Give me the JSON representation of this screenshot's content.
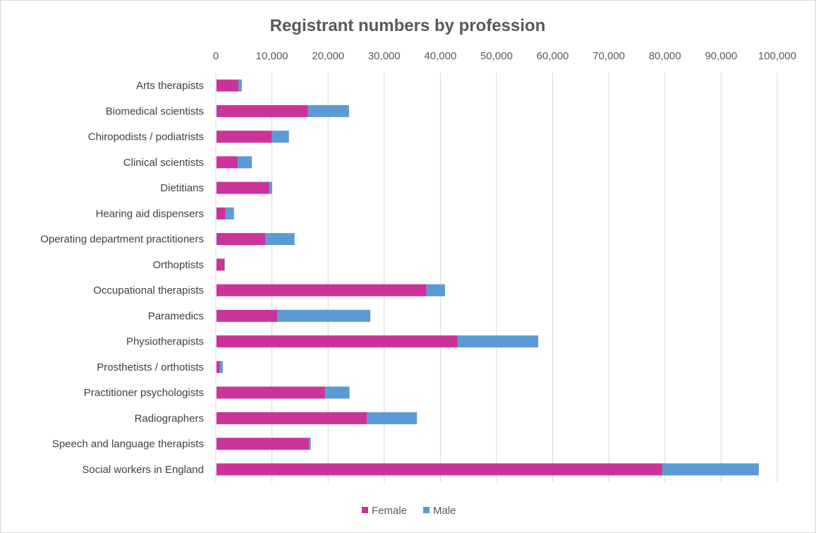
{
  "chart_data": {
    "type": "bar",
    "orientation": "horizontal",
    "stacked": true,
    "title": "Registrant numbers by profession",
    "xlabel": "",
    "ylabel": "",
    "xlim": [
      0,
      100000
    ],
    "ticks": [
      0,
      10000,
      20000,
      30000,
      40000,
      50000,
      60000,
      70000,
      80000,
      90000,
      100000
    ],
    "tick_labels": [
      "0",
      "10,000",
      "20,000",
      "30,000",
      "40,000",
      "50,000",
      "60,000",
      "70,000",
      "80,000",
      "90,000",
      "100,000"
    ],
    "grid": true,
    "legend_position": "bottom",
    "categories": [
      "Arts therapists",
      "Biomedical scientists",
      "Chiropodists / podiatrists",
      "Clinical scientists",
      "Dietitians",
      "Hearing aid dispensers",
      "Operating department practitioners",
      "Orthoptists",
      "Occupational therapists",
      "Paramedics",
      "Physiotherapists",
      "Prosthetists / orthotists",
      "Practitioner psychologists",
      "Radiographers",
      "Speech and language therapists",
      "Social workers in England"
    ],
    "series": [
      {
        "name": "Female",
        "color": "#cc3399",
        "values": [
          3900,
          16300,
          9800,
          3800,
          9400,
          1600,
          8700,
          1400,
          37400,
          10800,
          43000,
          600,
          19300,
          26800,
          16500,
          79400
        ]
      },
      {
        "name": "Male",
        "color": "#5b9bd5",
        "values": [
          600,
          7300,
          3100,
          2500,
          500,
          1500,
          5200,
          100,
          3300,
          16600,
          14300,
          500,
          4400,
          8900,
          300,
          17200
        ]
      }
    ]
  }
}
